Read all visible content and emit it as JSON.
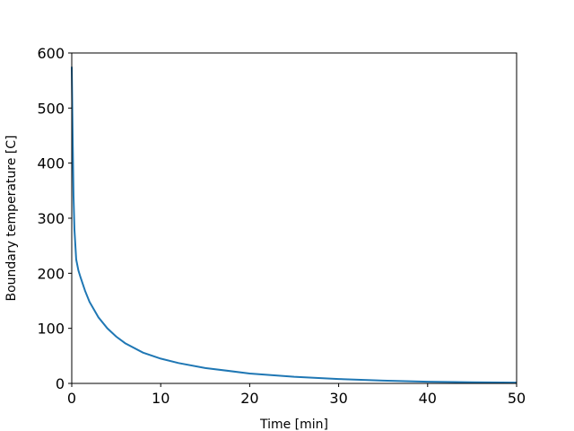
{
  "chart_data": {
    "type": "line",
    "xlabel": "Time [min]",
    "ylabel": "Boundary temperature [C]",
    "x": [
      0,
      0.1,
      0.2,
      0.3,
      0.5,
      0.75,
      1,
      1.5,
      2,
      3,
      4,
      5,
      6,
      8,
      10,
      12,
      15,
      20,
      25,
      30,
      35,
      40,
      45,
      50
    ],
    "series": [
      {
        "color": "#1f77b4",
        "values": [
          575,
          450,
          340,
          280,
          225,
          205,
          192,
          168,
          148,
          120,
          100,
          85,
          73,
          56,
          45,
          37,
          28,
          18,
          12,
          8,
          5,
          3,
          2,
          1.5
        ]
      }
    ],
    "xlim": [
      0,
      50
    ],
    "xticks": [
      0,
      10,
      20,
      30,
      40,
      50
    ],
    "ylim": [
      0,
      600
    ],
    "yticks": [
      0,
      100,
      200,
      300,
      400,
      500,
      600
    ]
  }
}
